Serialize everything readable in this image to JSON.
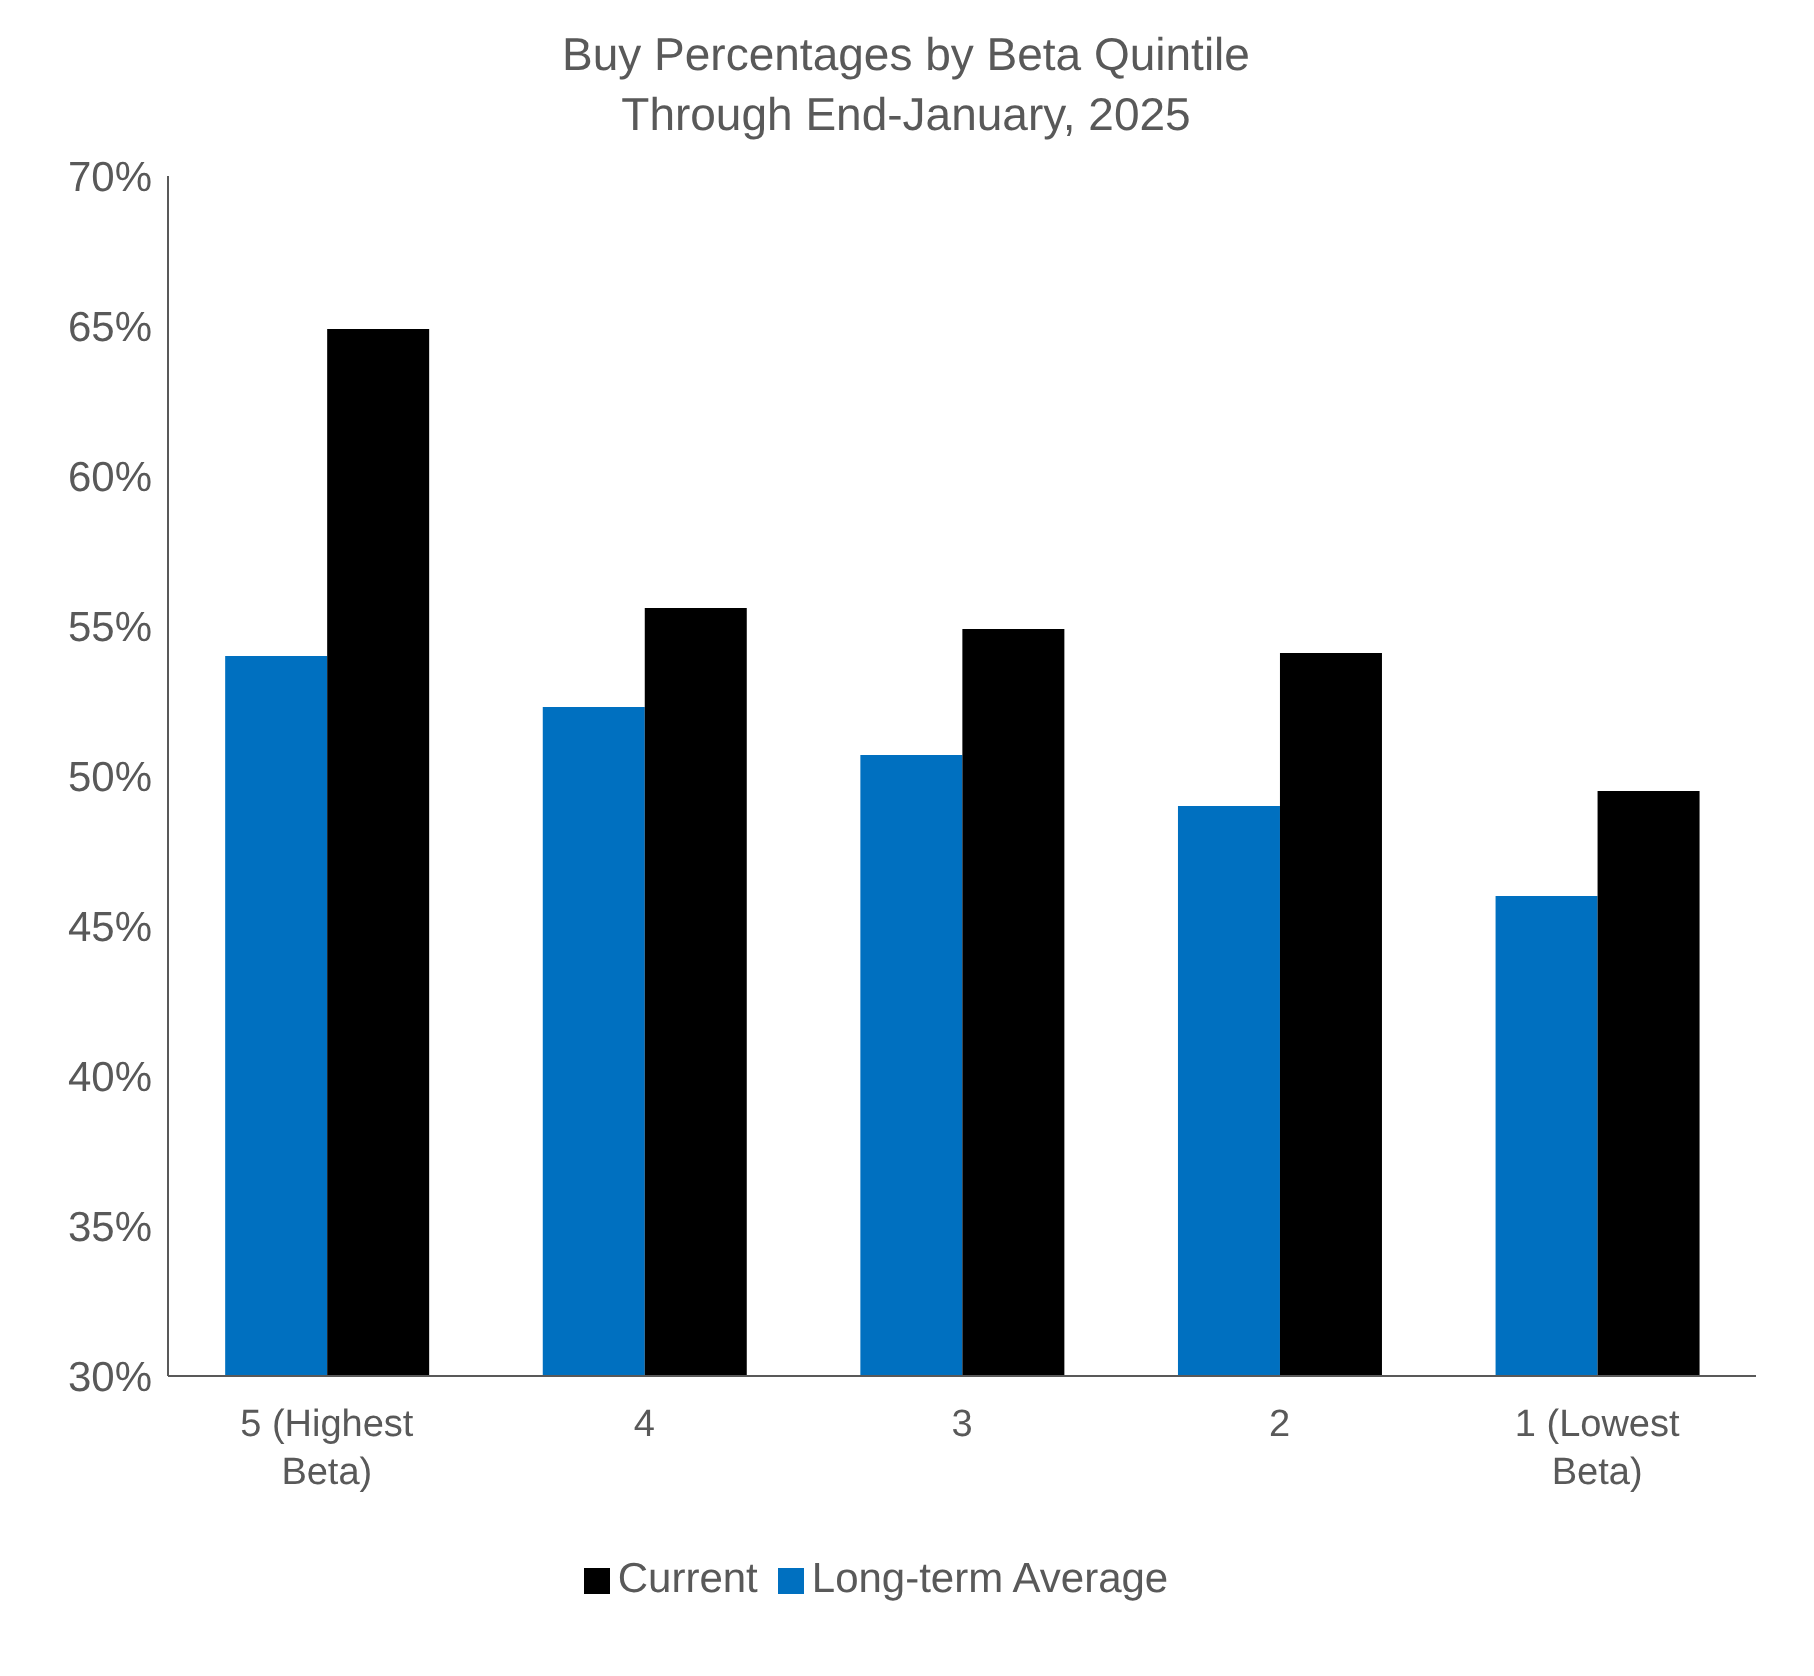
{
  "chart_data": {
    "type": "bar",
    "title": "Buy Percentages by Beta Quintile",
    "subtitle": "Through End-January, 2025",
    "categories": [
      "5 (Highest Beta)",
      "4",
      "3",
      "2",
      "1 (Lowest Beta)"
    ],
    "series": [
      {
        "name": "Long-term Average",
        "color": "#0070c0",
        "values": [
          54.0,
          52.3,
          50.7,
          49.0,
          46.0
        ]
      },
      {
        "name": "Current",
        "color": "#000000",
        "values": [
          64.9,
          55.6,
          54.9,
          54.1,
          49.5
        ]
      }
    ],
    "ylim": [
      30,
      70
    ],
    "yticks": [
      {
        "value": 30,
        "label": "30%"
      },
      {
        "value": 35,
        "label": "35%"
      },
      {
        "value": 40,
        "label": "40%"
      },
      {
        "value": 45,
        "label": "45%"
      },
      {
        "value": 50,
        "label": "50%"
      },
      {
        "value": 55,
        "label": "55%"
      },
      {
        "value": 60,
        "label": "60%"
      },
      {
        "value": 65,
        "label": "65%"
      },
      {
        "value": 70,
        "label": "70%"
      }
    ],
    "grid": false,
    "legend": "bottom"
  }
}
